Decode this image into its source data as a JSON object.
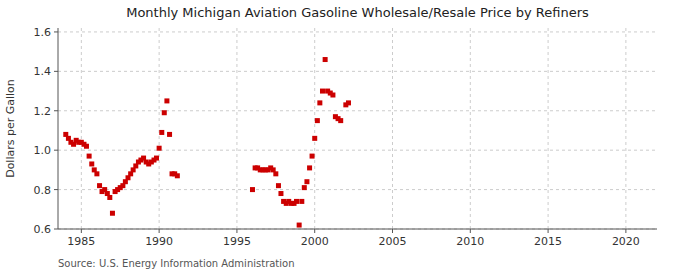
{
  "chart_data": {
    "type": "scatter",
    "title": "Monthly Michigan Aviation Gasoline Wholesale/Resale Price by Refiners",
    "ylabel": "Dollars per Gallon",
    "source": "Source: U.S. Energy Information Administration",
    "color": "#cc0000",
    "marker": "square",
    "grid": true,
    "xlim": [
      1983.5,
      2022
    ],
    "ylim": [
      0.6,
      1.62
    ],
    "xticks": [
      1985,
      1990,
      1995,
      2000,
      2005,
      2010,
      2015,
      2020
    ],
    "yticks": [
      0.6,
      0.8,
      {
        "value": 1.0,
        "label": "1.0"
      },
      1.2,
      1.4,
      1.6
    ],
    "x": [
      1984.0,
      1984.17,
      1984.33,
      1984.5,
      1984.67,
      1984.83,
      1985.0,
      1985.17,
      1985.33,
      1985.5,
      1985.67,
      1985.83,
      1986.0,
      1986.17,
      1986.33,
      1986.5,
      1986.67,
      1986.83,
      1987.0,
      1987.17,
      1987.33,
      1987.5,
      1987.67,
      1987.83,
      1988.0,
      1988.17,
      1988.33,
      1988.5,
      1988.67,
      1988.83,
      1989.0,
      1989.17,
      1989.33,
      1989.5,
      1989.67,
      1989.83,
      1990.0,
      1990.17,
      1990.33,
      1990.5,
      1990.67,
      1990.83,
      1991.0,
      1991.17,
      1996.0,
      1996.17,
      1996.33,
      1996.5,
      1996.67,
      1996.83,
      1997.0,
      1997.17,
      1997.33,
      1997.5,
      1997.67,
      1997.83,
      1998.0,
      1998.17,
      1998.33,
      1998.5,
      1998.67,
      1998.83,
      1999.0,
      1999.17,
      1999.33,
      1999.5,
      1999.67,
      1999.83,
      2000.0,
      2000.17,
      2000.33,
      2000.5,
      2000.67,
      2000.83,
      2001.0,
      2001.17,
      2001.33,
      2001.5,
      2001.67,
      2002.0,
      2002.17
    ],
    "values": [
      1.08,
      1.06,
      1.04,
      1.03,
      1.05,
      1.04,
      1.04,
      1.03,
      1.02,
      0.97,
      0.93,
      0.9,
      0.88,
      0.82,
      0.79,
      0.8,
      0.78,
      0.76,
      0.68,
      0.79,
      0.8,
      0.81,
      0.82,
      0.84,
      0.86,
      0.88,
      0.9,
      0.92,
      0.94,
      0.95,
      0.96,
      0.94,
      0.93,
      0.94,
      0.95,
      0.96,
      1.01,
      1.09,
      1.19,
      1.25,
      1.08,
      0.88,
      0.88,
      0.87,
      0.8,
      0.91,
      0.91,
      0.9,
      0.9,
      0.9,
      0.9,
      0.91,
      0.9,
      0.88,
      0.82,
      0.78,
      0.74,
      0.73,
      0.74,
      0.73,
      0.73,
      0.74,
      0.62,
      0.74,
      0.81,
      0.84,
      0.91,
      0.97,
      1.06,
      1.15,
      1.24,
      1.3,
      1.46,
      1.3,
      1.29,
      1.28,
      1.17,
      1.16,
      1.15,
      1.23,
      1.24
    ]
  }
}
